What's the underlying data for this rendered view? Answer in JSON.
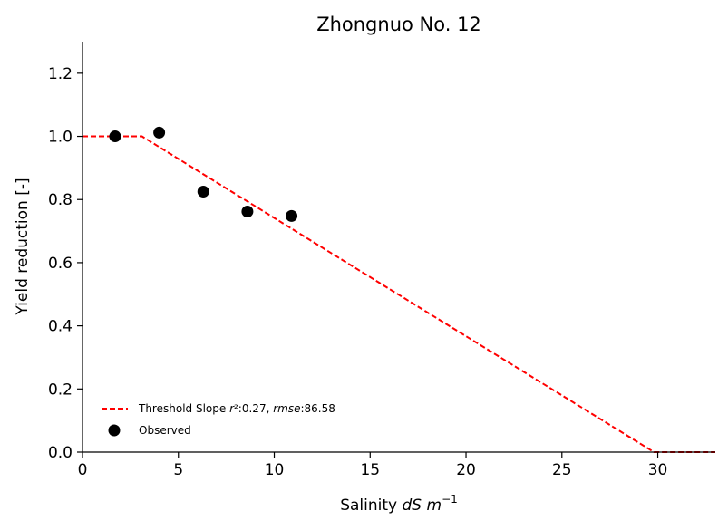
{
  "chart_data": {
    "type": "line",
    "title": "Zhongnuo No. 12",
    "xlabel": "Salinity dS m⁻¹",
    "ylabel": "Yield reduction [-]",
    "xlim": [
      0,
      33
    ],
    "ylim": [
      0,
      1.3
    ],
    "xticks": [
      0,
      5,
      10,
      15,
      20,
      25,
      30
    ],
    "yticks": [
      0.0,
      0.2,
      0.4,
      0.6,
      0.8,
      1.0,
      1.2
    ],
    "xtick_labels": [
      "0",
      "5",
      "10",
      "15",
      "20",
      "25",
      "30"
    ],
    "ytick_labels": [
      "0.0",
      "0.2",
      "0.4",
      "0.6",
      "0.8",
      "1.0",
      "1.2"
    ],
    "grid": false,
    "legend_position": "lower-left",
    "series": [
      {
        "name": "Threshold Slope r²:0.27, rmse:86.58",
        "style": "dashed",
        "color": "#ff0000",
        "x": [
          0,
          3.1,
          29.8,
          33
        ],
        "y": [
          1.0,
          1.0,
          0.0,
          0.0
        ]
      },
      {
        "name": "Observed",
        "style": "marker",
        "color": "#000000",
        "x": [
          1.7,
          4.0,
          6.3,
          8.6,
          10.9
        ],
        "y": [
          1.0,
          1.012,
          0.825,
          0.762,
          0.748
        ]
      }
    ],
    "legend": {
      "threshold_prefix": "Threshold Slope ",
      "threshold_r": "r",
      "threshold_r2_value": "²:0.27, ",
      "threshold_rmse": "rmse",
      "threshold_rmse_value": ":86.58",
      "observed": "Observed"
    }
  }
}
